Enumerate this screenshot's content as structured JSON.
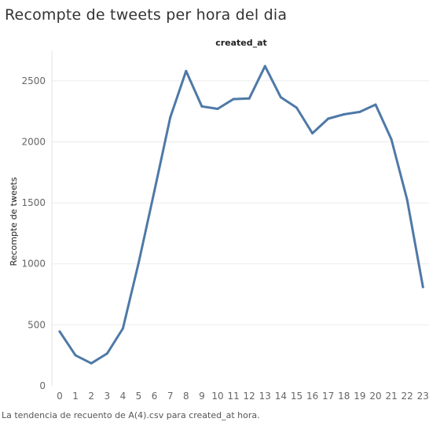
{
  "title": "Recompte de tweets per hora del dia",
  "caption": "La tendencia de recuento de A(4).csv para created_at hora.",
  "chart_data": {
    "type": "line",
    "title": "Recompte de tweets per hora del dia",
    "column_header": "created_at",
    "xlabel": "",
    "ylabel": "Recompte de tweets",
    "x": [
      0,
      1,
      2,
      3,
      4,
      5,
      6,
      7,
      8,
      9,
      10,
      11,
      12,
      13,
      14,
      15,
      16,
      17,
      18,
      19,
      20,
      21,
      22,
      23
    ],
    "series": [
      {
        "values": [
          445,
          250,
          185,
          265,
          470,
          1010,
          1600,
          2200,
          2580,
          2290,
          2270,
          2350,
          2355,
          2620,
          2365,
          2280,
          2070,
          2190,
          2225,
          2245,
          2305,
          2020,
          1525,
          810
        ]
      }
    ],
    "ylim": [
      0,
      2750
    ],
    "yticks": [
      0,
      500,
      1000,
      1500,
      2000,
      2500
    ],
    "grid": true,
    "line_color": "#4e79a7"
  }
}
